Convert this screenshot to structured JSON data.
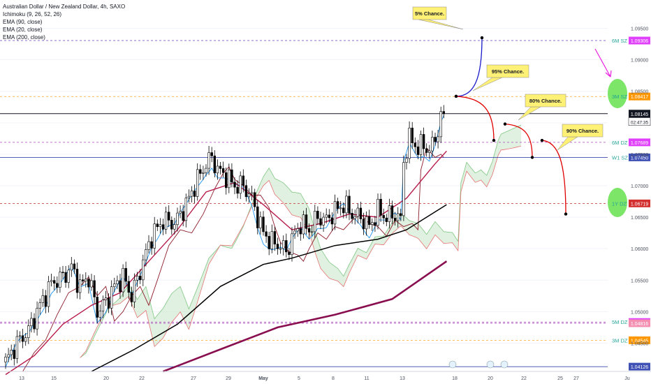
{
  "legend": {
    "symbol": "Australian Dollar / New Zealand Dollar, 4h, SAXO",
    "indicators": [
      "Ichimoku (9, 26, 52, 26)",
      "EMA (90, close)",
      "EMA (20, close)",
      "EMA (200, close)"
    ]
  },
  "colors": {
    "up": "#ffffff",
    "down": "#000000",
    "ema20": "#b71c4a",
    "ema90": "#000000",
    "ema200": "#880e4f",
    "tenkan": "#2196f3",
    "kijun": "#8d1c2a",
    "cloud_green": "#c8e6c9",
    "cloud_red": "#ffcdd2",
    "forecast_up": "#1a1acc",
    "forecast_down": "#e00000",
    "callout": "#fff176",
    "zone_green": "#66e04e",
    "accent_arrow": "#e91ee0"
  },
  "chart_data": {
    "type": "candlestick",
    "title": "Australian Dollar / New Zealand Dollar, 4h, SAXO",
    "ylim": [
      1.0405,
      1.0995
    ],
    "y_ticks": [
      1.095,
      1.09,
      1.085,
      1.08,
      1.075,
      1.07,
      1.065,
      1.06,
      1.055,
      1.05,
      1.045
    ],
    "y_tick_labels": [
      "1.09500",
      "1.09000",
      "1.08500",
      "1.08000",
      "1.07500",
      "1.07000",
      "1.06500",
      "1.06000",
      "1.05500",
      "1.05000",
      "1.04500"
    ],
    "x_tick_labels": [
      "13",
      "15",
      "20",
      "22",
      "27",
      "29",
      "May",
      "5",
      "8",
      "11",
      "13",
      "18",
      "20",
      "22",
      "25",
      "27",
      "Ju"
    ],
    "last_price": "1.08145",
    "countdown": "02:47:35",
    "candle_anchors": [
      [
        0,
        1.042
      ],
      [
        4,
        1.045
      ],
      [
        8,
        1.047
      ],
      [
        12,
        1.051
      ],
      [
        16,
        1.0545
      ],
      [
        20,
        1.0555
      ],
      [
        23,
        1.057
      ],
      [
        26,
        1.054
      ],
      [
        29,
        1.0555
      ],
      [
        32,
        1.05
      ],
      [
        35,
        1.0515
      ],
      [
        38,
        1.054
      ],
      [
        41,
        1.0555
      ],
      [
        44,
        1.0525
      ],
      [
        47,
        1.0565
      ],
      [
        51,
        1.062
      ],
      [
        55,
        1.0645
      ],
      [
        59,
        1.064
      ],
      [
        63,
        1.067
      ],
      [
        67,
        1.071
      ],
      [
        70,
        1.0735
      ],
      [
        72,
        1.0745
      ],
      [
        74,
        1.0725
      ],
      [
        77,
        1.0715
      ],
      [
        80,
        1.07
      ],
      [
        83,
        1.07
      ],
      [
        86,
        1.068
      ],
      [
        88,
        1.065
      ],
      [
        90,
        1.0625
      ],
      [
        93,
        1.061
      ],
      [
        96,
        1.0605
      ],
      [
        98,
        1.0595
      ],
      [
        100,
        1.0615
      ],
      [
        103,
        1.064
      ],
      [
        106,
        1.063
      ],
      [
        109,
        1.065
      ],
      [
        112,
        1.0645
      ],
      [
        115,
        1.066
      ],
      [
        118,
        1.067
      ],
      [
        121,
        1.0655
      ],
      [
        124,
        1.065
      ],
      [
        127,
        1.0635
      ],
      [
        130,
        1.066
      ],
      [
        133,
        1.065
      ],
      [
        136,
        1.0655
      ],
      [
        138,
        1.0645
      ],
      [
        139,
        1.074
      ],
      [
        141,
        1.0775
      ],
      [
        144,
        1.076
      ],
      [
        146,
        1.0765
      ],
      [
        148,
        1.0755
      ],
      [
        150,
        1.0775
      ],
      [
        152,
        1.0805
      ],
      [
        153,
        1.0813
      ]
    ],
    "ema20_points": [
      [
        0,
        1.04
      ],
      [
        10,
        1.043
      ],
      [
        20,
        1.048
      ],
      [
        30,
        1.051
      ],
      [
        40,
        1.053
      ],
      [
        50,
        1.058
      ],
      [
        60,
        1.063
      ],
      [
        70,
        1.069
      ],
      [
        80,
        1.0705
      ],
      [
        90,
        1.067
      ],
      [
        100,
        1.063
      ],
      [
        110,
        1.064
      ],
      [
        120,
        1.0655
      ],
      [
        130,
        1.065
      ],
      [
        140,
        1.068
      ],
      [
        150,
        1.0735
      ],
      [
        154,
        1.0755
      ]
    ],
    "ema90_points": [
      [
        30,
        1.0405
      ],
      [
        45,
        1.044
      ],
      [
        60,
        1.048
      ],
      [
        75,
        1.054
      ],
      [
        90,
        1.0575
      ],
      [
        100,
        1.0585
      ],
      [
        115,
        1.0605
      ],
      [
        130,
        1.0615
      ],
      [
        140,
        1.063
      ],
      [
        154,
        1.067
      ]
    ],
    "ema200_points": [
      [
        55,
        1.0405
      ],
      [
        75,
        1.044
      ],
      [
        95,
        1.0475
      ],
      [
        115,
        1.0495
      ],
      [
        135,
        1.052
      ],
      [
        154,
        1.058
      ]
    ],
    "price_levels": [
      {
        "label": "6M SZ",
        "price_tag": "1.09306",
        "price": 1.09306,
        "style": "dashed",
        "color": "#7e57c2",
        "tag_color": "#e040fb"
      },
      {
        "label": "3M SZ",
        "price_tag": "1.08417",
        "price": 1.08417,
        "style": "dashed",
        "color": "#ffa726",
        "tag_color": "#ff9800"
      },
      {
        "label": "",
        "price_tag": "1.08145",
        "price": 1.08145,
        "style": "solid",
        "color": "#131722",
        "tag_color": "#131722"
      },
      {
        "label": "6M DZ",
        "price_tag": "1.07689",
        "price": 1.07689,
        "style": "dashed",
        "color": "#ab47bc",
        "tag_color": "#e040fb"
      },
      {
        "label": "W1 SZ",
        "price_tag": "1.07450",
        "price": 1.0745,
        "style": "solid",
        "color": "#3949ab",
        "tag_color": "#3f51b5"
      },
      {
        "label": "1Y DZ",
        "price_tag": "1.06719",
        "price": 1.06719,
        "style": "dashed",
        "color": "#c62828",
        "tag_color": "#d32f2f"
      },
      {
        "label": "5M DZ",
        "price_tag": "1.04835",
        "price": 1.04835,
        "style": "dashed",
        "color": "#ab47bc",
        "tag_color": "#e040fb"
      },
      {
        "label": "",
        "price_tag": "1.04816",
        "price": 1.04816,
        "style": "dashed",
        "color": "#ab47bc",
        "tag_color": "#f48fb1"
      },
      {
        "label": "3M DZ",
        "price_tag": "1.04545",
        "price": 1.04545,
        "style": "dashed",
        "color": "#ffa726",
        "tag_color": "#ff9800"
      },
      {
        "label": "",
        "price_tag": "1.04126",
        "price": 1.04126,
        "style": "solid",
        "color": "#3949ab",
        "tag_color": "#3f51b5"
      }
    ],
    "forecasts": [
      {
        "label": "5% Chance.",
        "from": [
          1.0842,
          1.0935
        ],
        "color": "#1a1acc"
      },
      {
        "label": "95% Chance.",
        "from": [
          1.0842,
          1.0772
        ],
        "color": "#e00000"
      },
      {
        "label": "80% Chance.",
        "from": [
          1.0798,
          1.0745
        ],
        "color": "#e00000"
      },
      {
        "label": "90% Chance.",
        "from": [
          1.0772,
          1.0655
        ],
        "color": "#e00000"
      }
    ]
  }
}
